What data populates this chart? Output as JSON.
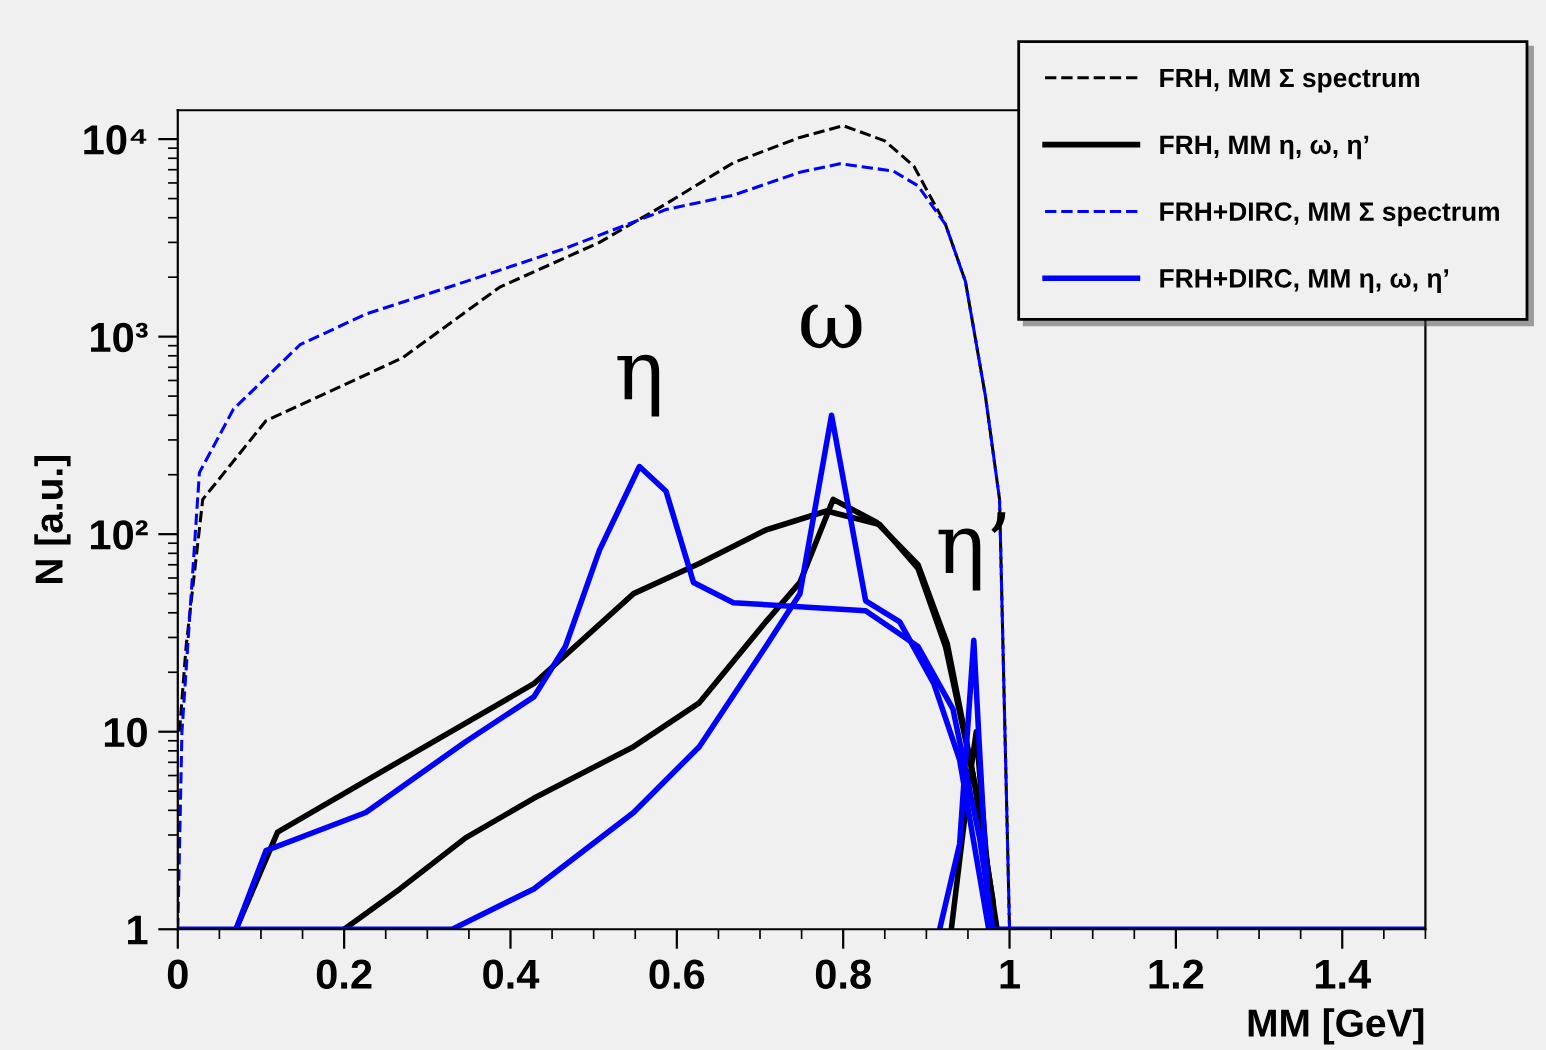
{
  "chart_data": {
    "type": "line",
    "xlabel": "MM [GeV]",
    "ylabel": "N [a.u.]",
    "log": "y",
    "grid": false,
    "legend": "top right",
    "xlim": [
      0,
      1.5
    ],
    "xticks": [
      0,
      0.2,
      0.4,
      0.6,
      0.8,
      1,
      1.2,
      1.4
    ],
    "ylim": [
      1,
      14000
    ],
    "yticks": [
      1,
      10,
      {
        "value": 100,
        "label": "10²"
      },
      {
        "value": 1000,
        "label": "10³"
      },
      {
        "value": 10000,
        "label": "10⁴"
      }
    ],
    "series": [
      {
        "name": "FRH, MM Σ spectrum",
        "color": "#000000",
        "line_style": "dashed",
        "x": [
          0.002,
          0.01,
          0.03,
          0.106,
          0.27,
          0.387,
          0.507,
          0.587,
          0.668,
          0.748,
          0.8,
          0.85,
          0.885,
          0.923,
          0.947,
          0.971,
          0.988,
          1.0
        ],
        "values": [
          10,
          27,
          150,
          375,
          780,
          1780,
          3000,
          4700,
          7600,
          10200,
          11700,
          9800,
          7300,
          3700,
          1900,
          500,
          150,
          1
        ]
      },
      {
        "name": "FRH, MM η, ω, η’",
        "color": "#000000",
        "line_style": "solid",
        "x": [
          0.07,
          0.12,
          0.267,
          0.428,
          0.548,
          0.627,
          0.707,
          0.78,
          0.844,
          0.89,
          0.923,
          0.956,
          0.98
        ],
        "values": [
          1,
          3.1,
          7.1,
          17.5,
          50,
          71,
          105,
          131,
          112,
          67,
          27,
          6.1,
          1.4
        ]
      },
      {
        "color": "#000000",
        "line_style": "solid",
        "x": [
          0.2,
          0.267,
          0.346,
          0.428,
          0.548,
          0.627,
          0.707,
          0.748,
          0.788,
          0.84,
          0.89,
          0.925,
          0.96,
          0.985
        ],
        "values": [
          1,
          1.6,
          2.9,
          4.6,
          8.4,
          14,
          36,
          57,
          150,
          115,
          70,
          28,
          5,
          1
        ]
      },
      {
        "color": "#000000",
        "line_style": "solid",
        "x": [
          0.93,
          0.95,
          0.96,
          0.97,
          0.98
        ],
        "values": [
          1,
          5,
          10,
          3,
          1
        ]
      },
      {
        "name": "FRH+DIRC, MM Σ spectrum",
        "color": "#0000ff",
        "line_style": "dashed",
        "x": [
          0.0,
          0.005,
          0.026,
          0.067,
          0.147,
          0.226,
          0.346,
          0.466,
          0.587,
          0.668,
          0.748,
          0.796,
          0.86,
          0.89,
          0.923,
          0.947,
          0.971,
          0.988,
          1.0
        ],
        "values": [
          1,
          10,
          205,
          430,
          910,
          1300,
          1900,
          2800,
          4400,
          5200,
          6800,
          7500,
          6900,
          5800,
          3700,
          1900,
          500,
          150,
          1
        ]
      },
      {
        "name": "FRH+DIRC, MM η, ω, η’",
        "color": "#0000ff",
        "line_style": "solid",
        "x": [
          0.07,
          0.106,
          0.226,
          0.346,
          0.428,
          0.466,
          0.507,
          0.555,
          0.587,
          0.62,
          0.668,
          0.827,
          0.89,
          0.932,
          0.964,
          0.98
        ],
        "values": [
          1,
          2.5,
          3.9,
          8.9,
          15,
          27,
          83,
          220,
          165,
          57,
          45,
          41,
          27,
          13,
          2.9,
          1
        ]
      },
      {
        "color": "#0000ff",
        "line_style": "solid",
        "x": [
          0.0,
          0.33,
          0.428,
          0.548,
          0.627,
          0.707,
          0.748,
          0.786,
          0.827,
          0.868,
          0.909,
          0.94,
          0.975,
          1.5
        ],
        "values": [
          1,
          1,
          1.6,
          3.9,
          8.4,
          27,
          50,
          400,
          46,
          36,
          17.5,
          7.2,
          1,
          1
        ]
      },
      {
        "color": "#0000ff",
        "line_style": "solid",
        "x": [
          0.916,
          0.94,
          0.957,
          0.964,
          0.976
        ],
        "values": [
          1,
          2.7,
          29,
          8,
          1
        ]
      }
    ],
    "annotations": [
      {
        "text": "η",
        "x": 0.555,
        "y": 220
      },
      {
        "text": "ω",
        "x": 0.786,
        "y": 400
      },
      {
        "text": "η’",
        "x": 0.957,
        "y": 29
      }
    ]
  }
}
